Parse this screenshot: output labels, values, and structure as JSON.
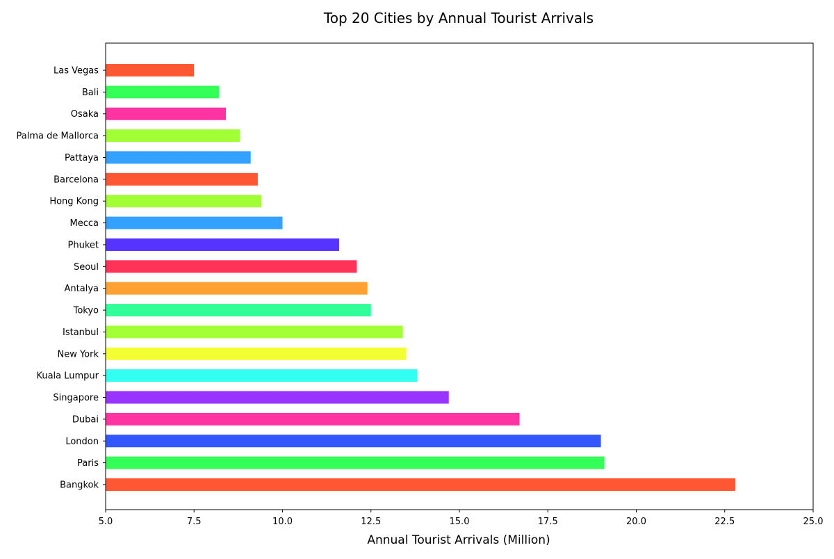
{
  "chart_data": {
    "type": "bar",
    "orientation": "horizontal",
    "title": "Top 20 Cities by Annual Tourist Arrivals",
    "xlabel": "Annual Tourist Arrivals (Million)",
    "ylabel": "",
    "xlim": [
      5.0,
      25.0
    ],
    "xticks": [
      "5.0",
      "7.5",
      "10.0",
      "12.5",
      "15.0",
      "17.5",
      "20.0",
      "22.5",
      "25.0"
    ],
    "xtick_values": [
      5.0,
      7.5,
      10.0,
      12.5,
      15.0,
      17.5,
      20.0,
      22.5,
      25.0
    ],
    "grid": false,
    "legend": "none",
    "categories": [
      "Bangkok",
      "Paris",
      "London",
      "Dubai",
      "Singapore",
      "Kuala Lumpur",
      "New York",
      "Istanbul",
      "Tokyo",
      "Antalya",
      "Seoul",
      "Phuket",
      "Mecca",
      "Hong Kong",
      "Barcelona",
      "Pattaya",
      "Palma de Mallorca",
      "Osaka",
      "Bali",
      "Las Vegas"
    ],
    "values": [
      22.8,
      19.1,
      19.0,
      16.7,
      14.7,
      13.8,
      13.5,
      13.4,
      12.5,
      12.4,
      12.1,
      11.6,
      10.0,
      9.4,
      9.3,
      9.1,
      8.8,
      8.4,
      8.2,
      7.5
    ],
    "colors": [
      "#ff5733",
      "#33ff57",
      "#3357ff",
      "#ff33a1",
      "#9933ff",
      "#33fff3",
      "#f3ff33",
      "#a1ff33",
      "#33ff99",
      "#ffa133",
      "#ff3357",
      "#5733ff",
      "#33a1ff",
      "#a1ff33",
      "#ff5733",
      "#33a1ff",
      "#a1ff33",
      "#ff33a1",
      "#33ff57",
      "#ff5733"
    ]
  }
}
